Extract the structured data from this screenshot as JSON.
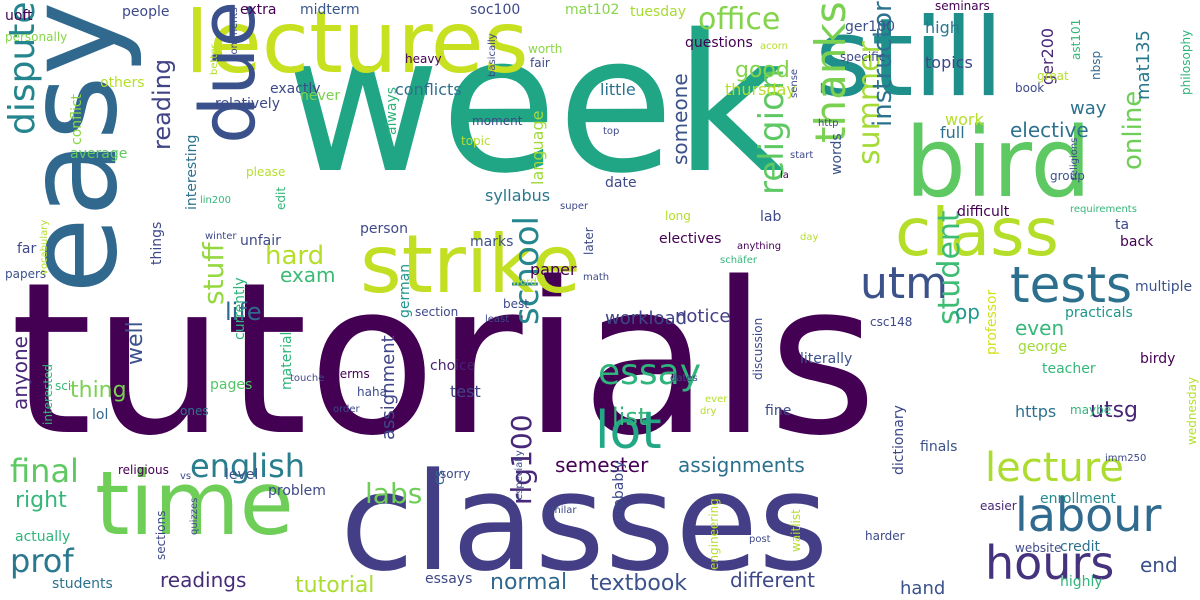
{
  "palette": [
    "#440154",
    "#482878",
    "#3e4989",
    "#31688e",
    "#26828e",
    "#1f9e89",
    "#35b779",
    "#6ece58",
    "#b5de2b",
    "#fde725"
  ],
  "words": [
    {
      "text": "tutorials",
      "color": "#440154"
    },
    {
      "text": "week",
      "color": "#21a685"
    },
    {
      "text": "classes",
      "color": "#433e85"
    },
    {
      "text": "easy",
      "color": "#31688e"
    },
    {
      "text": "still",
      "color": "#1f8f8c"
    },
    {
      "text": "lectures",
      "color": "#c7e020"
    },
    {
      "text": "bird",
      "color": "#5ec962"
    },
    {
      "text": "strike",
      "color": "#c2df23"
    },
    {
      "text": "time",
      "color": "#6ece58"
    },
    {
      "text": "due",
      "color": "#3b518b"
    },
    {
      "text": "class",
      "color": "#b5de2b"
    },
    {
      "text": "tests",
      "color": "#2d708e"
    },
    {
      "text": "lot",
      "color": "#22a884"
    },
    {
      "text": "hours",
      "color": "#46337e"
    },
    {
      "text": "labour",
      "color": "#306a8e"
    },
    {
      "text": "lecture",
      "color": "#addc30"
    },
    {
      "text": "utm",
      "color": "#3b528b"
    },
    {
      "text": "thanks",
      "color": "#7ad151"
    },
    {
      "text": "dispute",
      "color": "#25858e"
    },
    {
      "text": "essay",
      "color": "#2fb47c"
    },
    {
      "text": "school",
      "color": "#24868e"
    },
    {
      "text": "english",
      "color": "#287d8e"
    },
    {
      "text": "final",
      "color": "#5ec962"
    },
    {
      "text": "prof",
      "color": "#2a788e"
    },
    {
      "text": "labs",
      "color": "#6ece58"
    },
    {
      "text": "religion",
      "color": "#5ec962"
    },
    {
      "text": "student",
      "color": "#3dbc74"
    },
    {
      "text": "summer",
      "color": "#a5db36"
    },
    {
      "text": "office",
      "color": "#84d44b"
    },
    {
      "text": "stuff",
      "color": "#95d840"
    },
    {
      "text": "hard",
      "color": "#b5de2b"
    },
    {
      "text": "reading",
      "color": "#414487"
    },
    {
      "text": "online",
      "color": "#6ece58"
    },
    {
      "text": "instructor",
      "color": "#2c728e"
    },
    {
      "text": "life",
      "color": "#31688e"
    },
    {
      "text": "exam",
      "color": "#3bbb75"
    },
    {
      "text": "list",
      "color": "#35b779"
    },
    {
      "text": "rlg100",
      "color": "#482878"
    },
    {
      "text": "semester",
      "color": "#440154"
    },
    {
      "text": "assignments",
      "color": "#2c728e"
    },
    {
      "text": "tutorial",
      "color": "#aadc32"
    },
    {
      "text": "readings",
      "color": "#472c7a"
    },
    {
      "text": "normal",
      "color": "#31688e"
    },
    {
      "text": "textbook",
      "color": "#3b528b"
    },
    {
      "text": "different",
      "color": "#3e4989"
    },
    {
      "text": "end",
      "color": "#3b518b"
    },
    {
      "text": "elective",
      "color": "#2c728e"
    },
    {
      "text": "utsg",
      "color": "#482677"
    },
    {
      "text": "op",
      "color": "#1f998a"
    },
    {
      "text": "even",
      "color": "#35b779"
    },
    {
      "text": "good",
      "color": "#84d44b"
    },
    {
      "text": "thing",
      "color": "#7ad151"
    },
    {
      "text": "well",
      "color": "#3b528b"
    },
    {
      "text": "right",
      "color": "#35b779"
    },
    {
      "text": "someone",
      "color": "#3b528b"
    },
    {
      "text": "workload",
      "color": "#3f4788"
    },
    {
      "text": "notice",
      "color": "#433e85"
    },
    {
      "text": "anyone",
      "color": "#482878"
    },
    {
      "text": "assignment",
      "color": "#404688"
    },
    {
      "text": "hand",
      "color": "#3b528b"
    },
    {
      "text": "mat135",
      "color": "#2a788e"
    },
    {
      "text": "work",
      "color": "#b5de2b"
    },
    {
      "text": "way",
      "color": "#2c728e"
    },
    {
      "text": "topics",
      "color": "#404688"
    },
    {
      "text": "high",
      "color": "#2a788e"
    },
    {
      "text": "full",
      "color": "#2c728e"
    },
    {
      "text": "ger200",
      "color": "#482878"
    },
    {
      "text": "people",
      "color": "#3e4989"
    },
    {
      "text": "extra",
      "color": "#440154"
    },
    {
      "text": "midterm",
      "color": "#39568c"
    },
    {
      "text": "soc100",
      "color": "#3e4989"
    },
    {
      "text": "mat102",
      "color": "#86d549"
    },
    {
      "text": "tuesday",
      "color": "#a8db34"
    },
    {
      "text": "ger100",
      "color": "#3b528b"
    },
    {
      "text": "questions",
      "color": "#440154"
    },
    {
      "text": "conflicts",
      "color": "#2d708e"
    },
    {
      "text": "language",
      "color": "#a0da39"
    },
    {
      "text": "little",
      "color": "#2c728e"
    },
    {
      "text": "thursday",
      "color": "#b5de2b"
    },
    {
      "text": "relatively",
      "color": "#3e4989"
    },
    {
      "text": "exactly",
      "color": "#3e4989"
    },
    {
      "text": "never",
      "color": "#7ad151"
    },
    {
      "text": "always",
      "color": "#2fb47c"
    },
    {
      "text": "conflict",
      "color": "#8bd646"
    },
    {
      "text": "average",
      "color": "#5ec962"
    },
    {
      "text": "interesting",
      "color": "#2c728e"
    },
    {
      "text": "syllabus",
      "color": "#2a788e"
    },
    {
      "text": "date",
      "color": "#3e4989"
    },
    {
      "text": "words",
      "color": "#3b528b"
    },
    {
      "text": "lab",
      "color": "#3e4989"
    },
    {
      "text": "electives",
      "color": "#440154"
    },
    {
      "text": "marks",
      "color": "#3b528b"
    },
    {
      "text": "paper",
      "color": "#440154"
    },
    {
      "text": "choice",
      "color": "#481f70"
    },
    {
      "text": "test",
      "color": "#404688"
    },
    {
      "text": "george",
      "color": "#a0da39"
    },
    {
      "text": "birdy",
      "color": "#440154"
    },
    {
      "text": "professor",
      "color": "#d2e21b"
    },
    {
      "text": "https",
      "color": "#2c728e"
    },
    {
      "text": "fine",
      "color": "#3e4989"
    },
    {
      "text": "literally",
      "color": "#3b528b"
    },
    {
      "text": "teacher",
      "color": "#35b779"
    },
    {
      "text": "maybe",
      "color": "#31b57b"
    },
    {
      "text": "finals",
      "color": "#3b528b"
    },
    {
      "text": "enrollment",
      "color": "#23898e"
    },
    {
      "text": "easier",
      "color": "#482878"
    },
    {
      "text": "multiple",
      "color": "#3b528b"
    },
    {
      "text": "back",
      "color": "#440154"
    },
    {
      "text": "ta",
      "color": "#3e4989"
    },
    {
      "text": "difficult",
      "color": "#440154"
    },
    {
      "text": "group",
      "color": "#3b528b"
    },
    {
      "text": "practicals",
      "color": "#1f968b"
    },
    {
      "text": "currently",
      "color": "#2fb47c"
    },
    {
      "text": "lol",
      "color": "#31688e"
    },
    {
      "text": "sci",
      "color": "#35b779"
    },
    {
      "text": "material",
      "color": "#2fb47c"
    },
    {
      "text": "problem",
      "color": "#3e4989"
    },
    {
      "text": "level",
      "color": "#3b528b"
    },
    {
      "text": "pages",
      "color": "#52c569"
    },
    {
      "text": "actually",
      "color": "#2fb47c"
    },
    {
      "text": "students",
      "color": "#2c728e"
    },
    {
      "text": "essays",
      "color": "#3e4989"
    },
    {
      "text": "cs",
      "color": "#31688e"
    },
    {
      "text": "sorry",
      "color": "#3e4989"
    },
    {
      "text": "probably",
      "color": "#3e4989"
    },
    {
      "text": "dictionary",
      "color": "#3e4989"
    },
    {
      "text": "credit",
      "color": "#2c728e"
    },
    {
      "text": "website",
      "color": "#3e4989"
    },
    {
      "text": "highly",
      "color": "#2fb47c"
    },
    {
      "text": "uoft",
      "color": "#440154"
    },
    {
      "text": "personally",
      "color": "#86d549"
    },
    {
      "text": "papers",
      "color": "#3b528b"
    },
    {
      "text": "far",
      "color": "#3e4989"
    },
    {
      "text": "things",
      "color": "#3e4989"
    },
    {
      "text": "german",
      "color": "#1f968b"
    },
    {
      "text": "section",
      "color": "#3e4989"
    },
    {
      "text": "terms",
      "color": "#440154"
    },
    {
      "text": "ones",
      "color": "#2c728e"
    },
    {
      "text": "discussion",
      "color": "#3e4989"
    },
    {
      "text": "person",
      "color": "#3e4989"
    },
    {
      "text": "unfair",
      "color": "#3e4989"
    },
    {
      "text": "edit",
      "color": "#35b779"
    },
    {
      "text": "heavy",
      "color": "#440154"
    },
    {
      "text": "moment",
      "color": "#3e4989"
    },
    {
      "text": "basically",
      "color": "#3e4989"
    },
    {
      "text": "worth",
      "color": "#8bd646"
    },
    {
      "text": "fair",
      "color": "#3e4989"
    },
    {
      "text": "acorn",
      "color": "#b5de2b"
    },
    {
      "text": "sense",
      "color": "#3e4989"
    },
    {
      "text": "specific",
      "color": "#3e4989"
    },
    {
      "text": "seminars",
      "color": "#440154"
    },
    {
      "text": "ast101",
      "color": "#35b779"
    },
    {
      "text": "nbsp",
      "color": "#31688e"
    },
    {
      "text": "book",
      "color": "#3e4989"
    },
    {
      "text": "great",
      "color": "#b5de2b"
    },
    {
      "text": "philosophy",
      "color": "#2fb47c"
    },
    {
      "text": "others",
      "color": "#b5de2b"
    },
    {
      "text": "better",
      "color": "#b5de2b"
    },
    {
      "text": "comments",
      "color": "#3e4989"
    },
    {
      "text": "topic",
      "color": "#b5de2b"
    },
    {
      "text": "top",
      "color": "#3e4989"
    },
    {
      "text": "http",
      "color": "#3e4989"
    },
    {
      "text": "please",
      "color": "#b5de2b"
    },
    {
      "text": "vocabulary",
      "color": "#b5de2b"
    },
    {
      "text": "lin200",
      "color": "#35b779"
    },
    {
      "text": "winter",
      "color": "#3e4989"
    },
    {
      "text": "start",
      "color": "#3e4989"
    },
    {
      "text": "la",
      "color": "#440154"
    },
    {
      "text": "religions",
      "color": "#3e4989"
    },
    {
      "text": "requirements",
      "color": "#35b779"
    },
    {
      "text": "super",
      "color": "#3e4989"
    },
    {
      "text": "long",
      "color": "#b5de2b"
    },
    {
      "text": "day",
      "color": "#b5de2b"
    },
    {
      "text": "later",
      "color": "#3e4989"
    },
    {
      "text": "anything",
      "color": "#440154"
    },
    {
      "text": "schäfer",
      "color": "#35b779"
    },
    {
      "text": "math",
      "color": "#3e4989"
    },
    {
      "text": "word",
      "color": "#b5de2b"
    },
    {
      "text": "best",
      "color": "#3e4989"
    },
    {
      "text": "least",
      "color": "#3e4989"
    },
    {
      "text": "touche",
      "color": "#3e4989"
    },
    {
      "text": "csc148",
      "color": "#3e4989"
    },
    {
      "text": "haha",
      "color": "#3e4989"
    },
    {
      "text": "order",
      "color": "#3e4989"
    },
    {
      "text": "dates",
      "color": "#3e4989"
    },
    {
      "text": "ever",
      "color": "#b5de2b"
    },
    {
      "text": "dry",
      "color": "#b5de2b"
    },
    {
      "text": "imm250",
      "color": "#3e4989"
    },
    {
      "text": "wednesday",
      "color": "#b5de2b"
    },
    {
      "text": "interested",
      "color": "#35b779"
    },
    {
      "text": "religious",
      "color": "#440154"
    },
    {
      "text": "vs",
      "color": "#3e4989"
    },
    {
      "text": "sections",
      "color": "#3e4989"
    },
    {
      "text": "quizzes",
      "color": "#3e4989"
    },
    {
      "text": "especially",
      "color": "#3e4989"
    },
    {
      "text": "similar",
      "color": "#3e4989"
    },
    {
      "text": "engineering",
      "color": "#b5de2b"
    },
    {
      "text": "waitlist",
      "color": "#b5de2b"
    },
    {
      "text": "post",
      "color": "#3e4989"
    },
    {
      "text": "harder",
      "color": "#3e4989"
    }
  ]
}
